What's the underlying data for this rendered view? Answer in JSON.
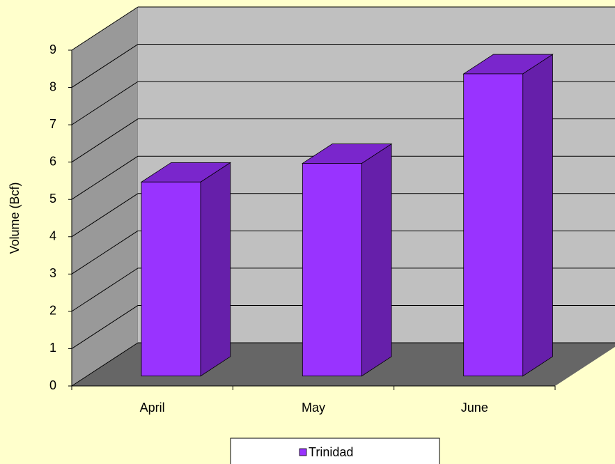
{
  "chart_data": {
    "type": "bar3d",
    "y_label": "Volume (Bcf)",
    "categories": [
      "April",
      "May",
      "June"
    ],
    "series": [
      {
        "name": "Trinidad",
        "color": "#9933FF",
        "values": [
          5.2,
          5.7,
          8.1
        ]
      }
    ],
    "ylim": [
      0,
      9
    ],
    "yticks": [
      0,
      1,
      2,
      3,
      4,
      5,
      6,
      7,
      8,
      9
    ],
    "grid": true,
    "legend": "bottom"
  }
}
